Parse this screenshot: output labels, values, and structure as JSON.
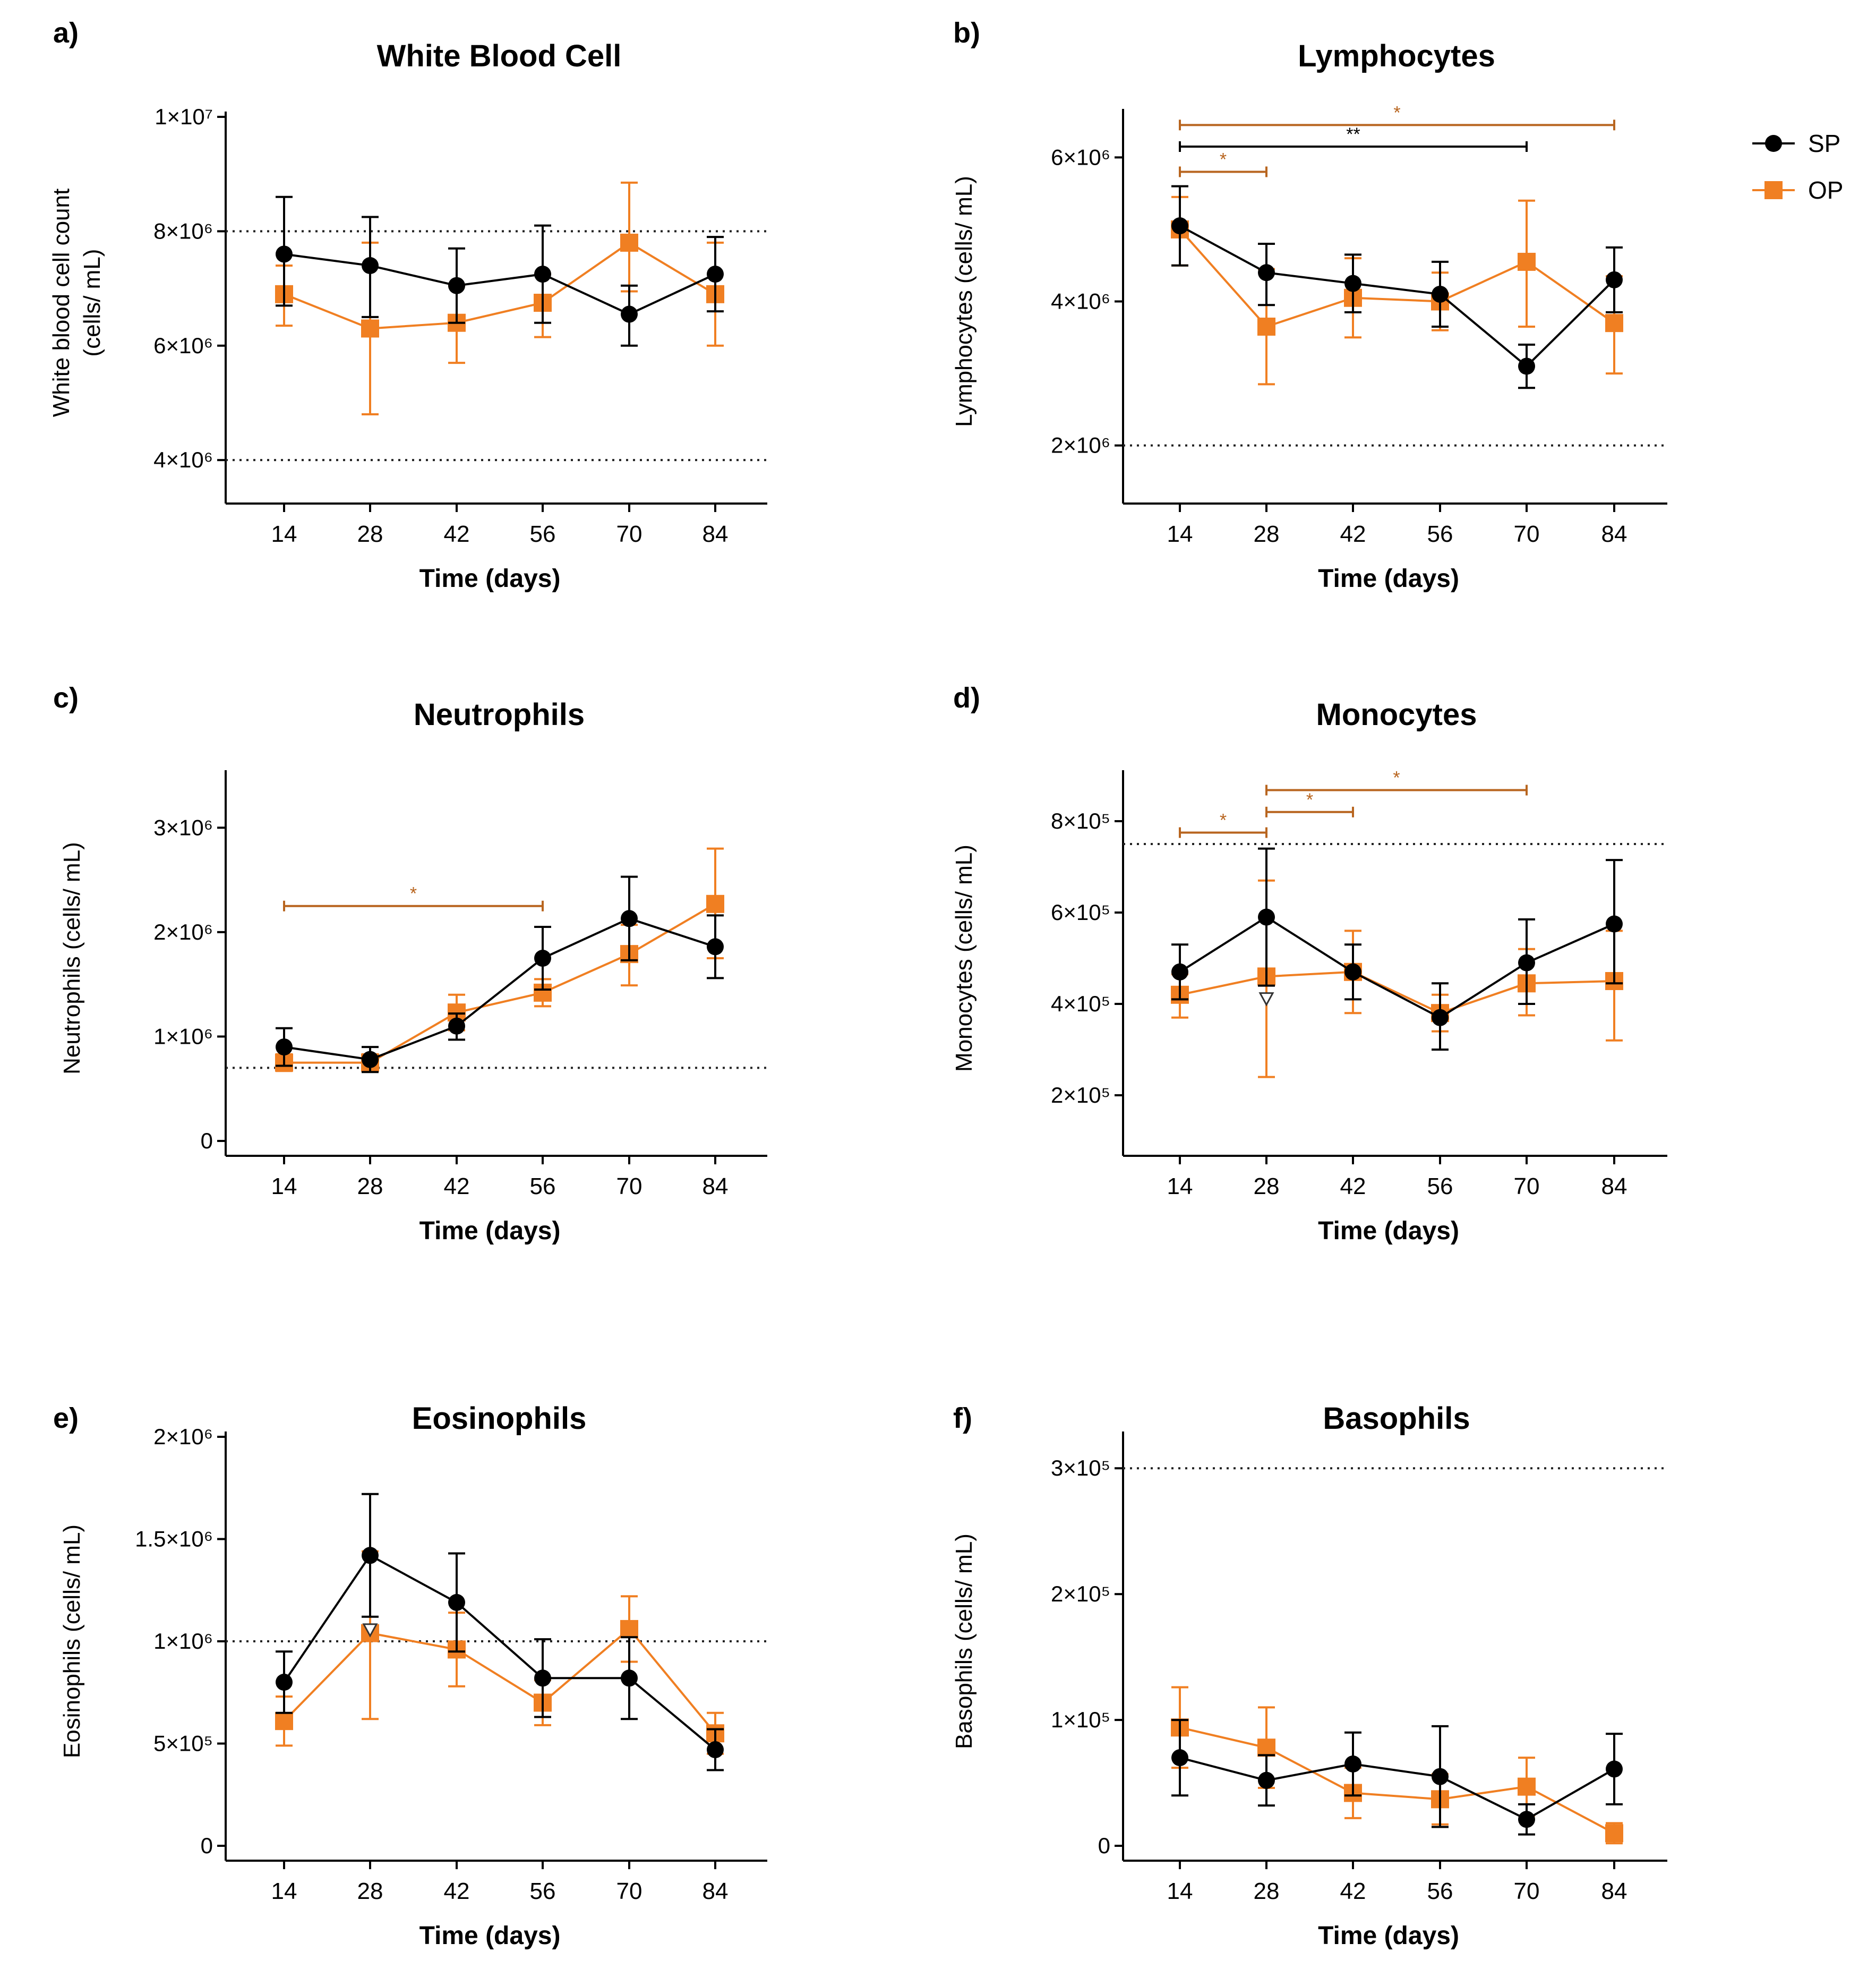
{
  "figure": {
    "x_label": "Time (days)",
    "legend": {
      "placement": "top-right",
      "items": [
        {
          "name": "SP",
          "color": "#000000",
          "marker": "circle"
        },
        {
          "name": "OP",
          "color": "#f07f22",
          "marker": "square"
        }
      ]
    },
    "series_colors": {
      "SP": "#000000",
      "OP": "#f07f22"
    },
    "sig_color": "#b8651f"
  },
  "chart_data": [
    {
      "letter": "a)",
      "title": "White Blood Cell",
      "type": "line",
      "xlabel": "Time (days)",
      "ylabel": [
        "White blood cell count",
        "(cells/ mL)"
      ],
      "categories": [
        14,
        28,
        42,
        56,
        70,
        84
      ],
      "ylim": [
        3500000,
        10000000
      ],
      "yticks": [
        {
          "value": 4000000,
          "label": "4×10⁶"
        },
        {
          "value": 6000000,
          "label": "6×10⁶"
        },
        {
          "value": 8000000,
          "label": "8×10⁶"
        },
        {
          "value": 10000000,
          "label": "1×10⁷"
        }
      ],
      "reference_lines": [
        8000000,
        4000000
      ],
      "series": [
        {
          "name": "SP",
          "values": [
            7600000,
            7400000,
            7050000,
            7250000,
            6550000,
            7250000
          ],
          "err_up": [
            1000000,
            850000,
            650000,
            850000,
            500000,
            650000
          ],
          "err_down": [
            900000,
            900000,
            650000,
            850000,
            550000,
            650000
          ],
          "open_markers": []
        },
        {
          "name": "OP",
          "values": [
            6900000,
            6300000,
            6400000,
            6750000,
            7800000,
            6900000
          ],
          "err_up": [
            500000,
            1500000,
            650000,
            500000,
            1050000,
            900000
          ],
          "err_down": [
            550000,
            1500000,
            700000,
            600000,
            850000,
            900000
          ],
          "open_markers": []
        }
      ],
      "significance": []
    },
    {
      "letter": "b)",
      "title": "Lymphocytes",
      "type": "line",
      "xlabel": "Time  (days)",
      "ylabel": [
        "Lymphocytes (cells/ mL)"
      ],
      "categories": [
        14,
        28,
        42,
        56,
        70,
        84
      ],
      "ylim": [
        1400000,
        6600000
      ],
      "yticks": [
        {
          "value": 2000000,
          "label": "2×10⁶"
        },
        {
          "value": 4000000,
          "label": "4×10⁶"
        },
        {
          "value": 6000000,
          "label": "6×10⁶"
        }
      ],
      "reference_lines": [
        2000000
      ],
      "series": [
        {
          "name": "SP",
          "values": [
            5050000,
            4400000,
            4250000,
            4100000,
            3100000,
            4300000
          ],
          "err_up": [
            550000,
            400000,
            400000,
            450000,
            300000,
            450000
          ],
          "err_down": [
            550000,
            450000,
            400000,
            450000,
            300000,
            450000
          ],
          "open_markers": []
        },
        {
          "name": "OP",
          "values": [
            5000000,
            3650000,
            4050000,
            4000000,
            4550000,
            3700000
          ],
          "err_up": [
            450000,
            800000,
            550000,
            400000,
            850000,
            650000
          ],
          "err_down": [
            500000,
            800000,
            550000,
            400000,
            900000,
            700000
          ],
          "open_markers": []
        }
      ],
      "significance": [
        {
          "from": 14,
          "to": 84,
          "label": "*",
          "series": "OP",
          "level": 6450000
        },
        {
          "from": 14,
          "to": 70,
          "label": "**",
          "series": "SP",
          "level": 6150000
        },
        {
          "from": 14,
          "to": 28,
          "label": "*",
          "series": "OP",
          "level": 5800000
        }
      ]
    },
    {
      "letter": "c)",
      "title": "Neutrophils",
      "type": "line",
      "xlabel": "Time (days)",
      "ylabel": [
        "Neutrophils (cells/ mL)"
      ],
      "categories": [
        14,
        28,
        42,
        56,
        70,
        84
      ],
      "ylim": [
        0,
        3500000
      ],
      "yticks": [
        {
          "value": 0,
          "label": "0"
        },
        {
          "value": 1000000,
          "label": "1×10⁶"
        },
        {
          "value": 2000000,
          "label": "2×10⁶"
        },
        {
          "value": 3000000,
          "label": "3×10⁶"
        }
      ],
      "reference_lines": [
        700000
      ],
      "series": [
        {
          "name": "SP",
          "values": [
            900000,
            780000,
            1100000,
            1750000,
            2130000,
            1860000
          ],
          "err_up": [
            180000,
            120000,
            120000,
            300000,
            400000,
            300000
          ],
          "err_down": [
            180000,
            120000,
            130000,
            300000,
            400000,
            300000
          ],
          "open_markers": []
        },
        {
          "name": "OP",
          "values": [
            750000,
            750000,
            1230000,
            1420000,
            1790000,
            2270000
          ],
          "err_up": [
            80000,
            80000,
            170000,
            130000,
            280000,
            530000
          ],
          "err_down": [
            80000,
            80000,
            170000,
            130000,
            300000,
            520000
          ],
          "open_markers": []
        }
      ],
      "significance": [
        {
          "from": 14,
          "to": 56,
          "label": "*",
          "series": "OP",
          "level": 2250000
        }
      ]
    },
    {
      "letter": "d)",
      "title": "Monocytes",
      "type": "line",
      "xlabel": "Time (days)",
      "ylabel": [
        "Monocytes  (cells/ mL)"
      ],
      "categories": [
        14,
        28,
        42,
        56,
        70,
        84
      ],
      "ylim": [
        100000,
        900000
      ],
      "yticks": [
        {
          "value": 200000,
          "label": "2×10⁵"
        },
        {
          "value": 400000,
          "label": "4×10⁵"
        },
        {
          "value": 600000,
          "label": "6×10⁵"
        },
        {
          "value": 800000,
          "label": "8×10⁵"
        }
      ],
      "reference_lines": [
        750000
      ],
      "series": [
        {
          "name": "SP",
          "values": [
            470000,
            590000,
            470000,
            370000,
            490000,
            575000
          ],
          "err_up": [
            60000,
            150000,
            60000,
            75000,
            95000,
            140000
          ],
          "err_down": [
            60000,
            150000,
            60000,
            70000,
            90000,
            130000
          ],
          "open_markers": [
            28
          ]
        },
        {
          "name": "OP",
          "values": [
            420000,
            460000,
            470000,
            380000,
            445000,
            450000
          ],
          "err_up": [
            45000,
            210000,
            90000,
            40000,
            75000,
            110000
          ],
          "err_down": [
            50000,
            220000,
            90000,
            40000,
            70000,
            130000
          ],
          "open_markers": []
        }
      ],
      "significance": [
        {
          "from": 28,
          "to": 70,
          "label": "*",
          "series": "OP",
          "level": 868000
        },
        {
          "from": 28,
          "to": 42,
          "label": "*",
          "series": "OP",
          "level": 820000
        },
        {
          "from": 14,
          "to": 28,
          "label": "*",
          "series": "OP",
          "level": 775000
        }
      ]
    },
    {
      "letter": "e)",
      "title": "Eosinophils",
      "type": "line",
      "xlabel": "Time (days)",
      "ylabel": [
        "Eosinophils (cells/ mL)"
      ],
      "categories": [
        14,
        28,
        42,
        56,
        70,
        84
      ],
      "ylim": [
        0,
        2000000
      ],
      "yticks": [
        {
          "value": 0,
          "label": "0"
        },
        {
          "value": 500000,
          "label": "5×10⁵"
        },
        {
          "value": 1000000,
          "label": "1×10⁶"
        },
        {
          "value": 1500000,
          "label": "1.5×10⁶"
        },
        {
          "value": 2000000,
          "label": "2×10⁶"
        }
      ],
      "reference_lines": [
        1000000
      ],
      "series": [
        {
          "name": "SP",
          "values": [
            800000,
            1420000,
            1190000,
            820000,
            820000,
            470000
          ],
          "err_up": [
            150000,
            300000,
            240000,
            190000,
            200000,
            100000
          ],
          "err_down": [
            150000,
            300000,
            240000,
            190000,
            200000,
            100000
          ],
          "open_markers": [
            28
          ]
        },
        {
          "name": "OP",
          "values": [
            610000,
            1040000,
            960000,
            700000,
            1060000,
            550000
          ],
          "err_up": [
            120000,
            400000,
            180000,
            110000,
            160000,
            100000
          ],
          "err_down": [
            120000,
            420000,
            180000,
            110000,
            160000,
            100000
          ],
          "open_markers": []
        }
      ],
      "significance": []
    },
    {
      "letter": "f)",
      "title": "Basophils",
      "type": "line",
      "xlabel": "Time (days)",
      "ylabel": [
        "Basophils (cells/ mL)"
      ],
      "categories": [
        14,
        28,
        42,
        56,
        70,
        84
      ],
      "ylim": [
        0,
        325000
      ],
      "yticks": [
        {
          "value": 0,
          "label": "0"
        },
        {
          "value": 100000,
          "label": "1×10⁵"
        },
        {
          "value": 200000,
          "label": "2×10⁵"
        },
        {
          "value": 300000,
          "label": "3×10⁵"
        }
      ],
      "reference_lines": [
        300000
      ],
      "series": [
        {
          "name": "SP",
          "values": [
            70000,
            52000,
            65000,
            55000,
            21000,
            61000
          ],
          "err_up": [
            30000,
            20000,
            25000,
            40000,
            12000,
            28000
          ],
          "err_down": [
            30000,
            20000,
            25000,
            40000,
            12000,
            28000
          ],
          "open_markers": []
        },
        {
          "name": "OP",
          "values": [
            94000,
            78000,
            42000,
            37000,
            47000,
            10000
          ],
          "err_up": [
            32000,
            32000,
            20000,
            20000,
            23000,
            8000
          ],
          "err_down": [
            32000,
            32000,
            20000,
            20000,
            23000,
            8000
          ],
          "open_markers": []
        }
      ],
      "significance": []
    }
  ]
}
